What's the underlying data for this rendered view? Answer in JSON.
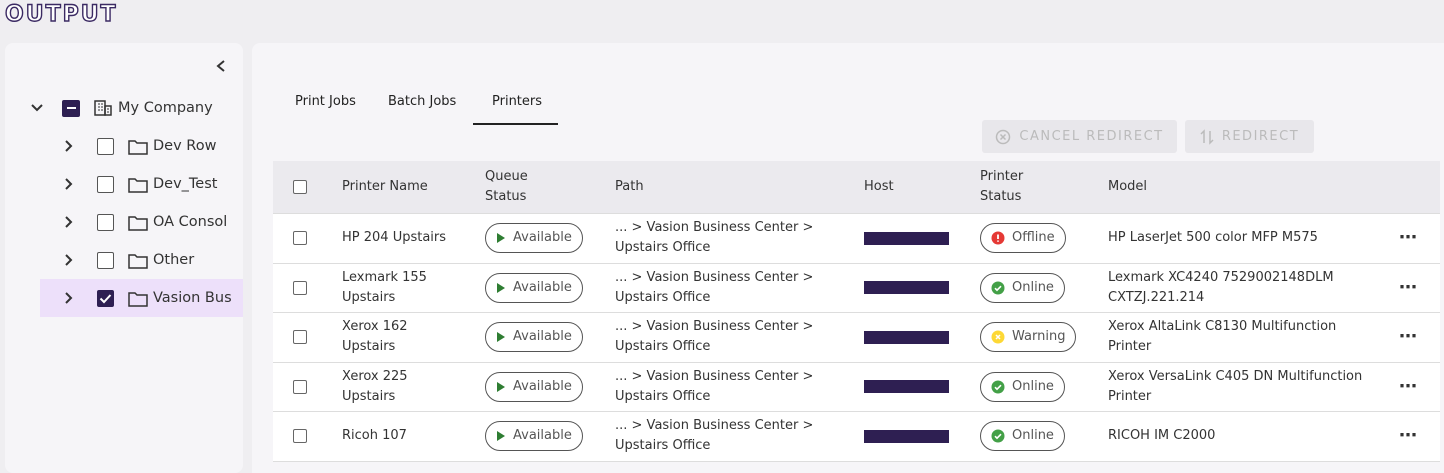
{
  "header": {
    "title": "OUTPUT"
  },
  "sidebar": {
    "root": "My Company",
    "items": [
      "Dev Row",
      "Dev_Test",
      "OA Consol",
      "Other",
      "Vasion Bus"
    ]
  },
  "tabs": [
    "Print Jobs",
    "Batch Jobs",
    "Printers"
  ],
  "actions": [
    "CANCEL REDIRECT",
    "REDIRECT"
  ],
  "table": {
    "columns": [
      "Printer Name",
      "Queue Status",
      "Path",
      "Host",
      "Printer Status",
      "Model"
    ],
    "rows": [
      {
        "name": "HP 204 Upstairs",
        "queue": "Available",
        "path": "... > Vasion Business Center > Upstairs Office",
        "status": "Offline",
        "model": "HP LaserJet 500 color MFP M575"
      },
      {
        "name": "Lexmark 155 Upstairs",
        "queue": "Available",
        "path": "... > Vasion Business Center > Upstairs Office",
        "status": "Online",
        "model": "Lexmark XC4240 7529002148DLM CXTZJ.221.214"
      },
      {
        "name": "Xerox 162 Upstairs",
        "queue": "Available",
        "path": "... > Vasion Business Center > Upstairs Office",
        "status": "Warning",
        "model": "Xerox AltaLink C8130 Multifunction Printer"
      },
      {
        "name": "Xerox 225 Upstairs",
        "queue": "Available",
        "path": "... > Vasion Business Center > Upstairs Office",
        "status": "Online",
        "model": "Xerox VersaLink C405 DN Multifunction Printer"
      },
      {
        "name": "Ricoh 107",
        "queue": "Available",
        "path": "... > Vasion Business Center > Upstairs Office",
        "status": "Online",
        "model": "RICOH IM C2000"
      }
    ]
  }
}
